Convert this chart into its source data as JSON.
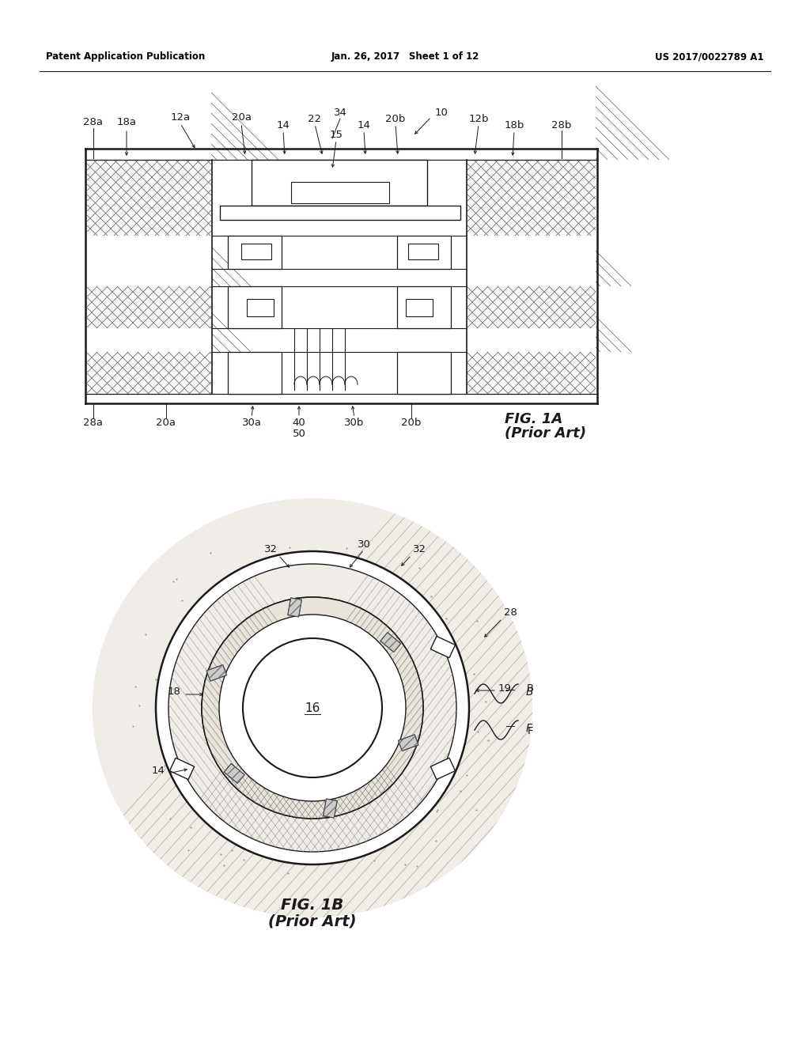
{
  "bg_color": "#ffffff",
  "line_color": "#1a1a1a",
  "header": {
    "left": "Patent Application Publication",
    "center": "Jan. 26, 2017  Sheet 1 of 12",
    "right": "US 2017/0022789 A1"
  },
  "fig1a_label": "FIG. 1A",
  "fig1a_sub": "(Prior Art)",
  "fig1b_label": "FIG. 1B",
  "fig1b_sub": "(Prior Art)"
}
